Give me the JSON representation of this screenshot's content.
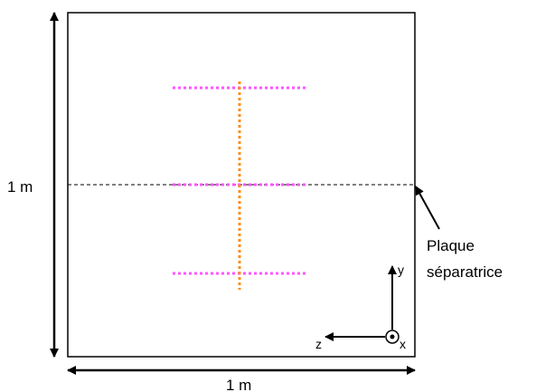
{
  "dimension_labels": {
    "height": "1 m",
    "width": "1 m"
  },
  "callout": {
    "line1": "Plaque",
    "line2": "séparatrice"
  },
  "axes": {
    "y": "y",
    "z": "z",
    "x": "x"
  },
  "colors": {
    "outline": "#000000",
    "horizontal_dotted_lines": "#ff55ff",
    "vertical_dotted_line": "#ff8c1a",
    "separator_line": "#000000"
  }
}
